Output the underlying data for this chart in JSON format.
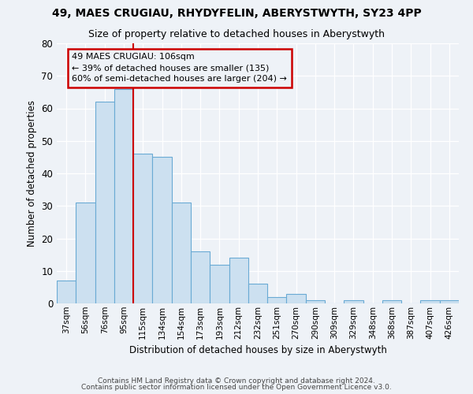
{
  "title1": "49, MAES CRUGIAU, RHYDYFELIN, ABERYSTWYTH, SY23 4PP",
  "title2": "Size of property relative to detached houses in Aberystwyth",
  "xlabel": "Distribution of detached houses by size in Aberystwyth",
  "ylabel": "Number of detached properties",
  "bin_labels": [
    "37sqm",
    "56sqm",
    "76sqm",
    "95sqm",
    "115sqm",
    "134sqm",
    "154sqm",
    "173sqm",
    "193sqm",
    "212sqm",
    "232sqm",
    "251sqm",
    "270sqm",
    "290sqm",
    "309sqm",
    "329sqm",
    "348sqm",
    "368sqm",
    "387sqm",
    "407sqm",
    "426sqm"
  ],
  "bar_values": [
    7,
    31,
    62,
    66,
    46,
    45,
    31,
    16,
    12,
    14,
    6,
    2,
    3,
    1,
    0,
    1,
    0,
    1,
    0,
    1,
    1
  ],
  "bar_color": "#cce0f0",
  "bar_edge_color": "#6aaad4",
  "vline_x_idx": 3.5,
  "vline_color": "#cc0000",
  "annotation_text": "49 MAES CRUGIAU: 106sqm\n← 39% of detached houses are smaller (135)\n60% of semi-detached houses are larger (204) →",
  "annotation_box_edge": "#cc0000",
  "ylim": [
    0,
    80
  ],
  "yticks": [
    0,
    10,
    20,
    30,
    40,
    50,
    60,
    70,
    80
  ],
  "footer1": "Contains HM Land Registry data © Crown copyright and database right 2024.",
  "footer2": "Contains public sector information licensed under the Open Government Licence v3.0.",
  "bg_color": "#eef2f7"
}
